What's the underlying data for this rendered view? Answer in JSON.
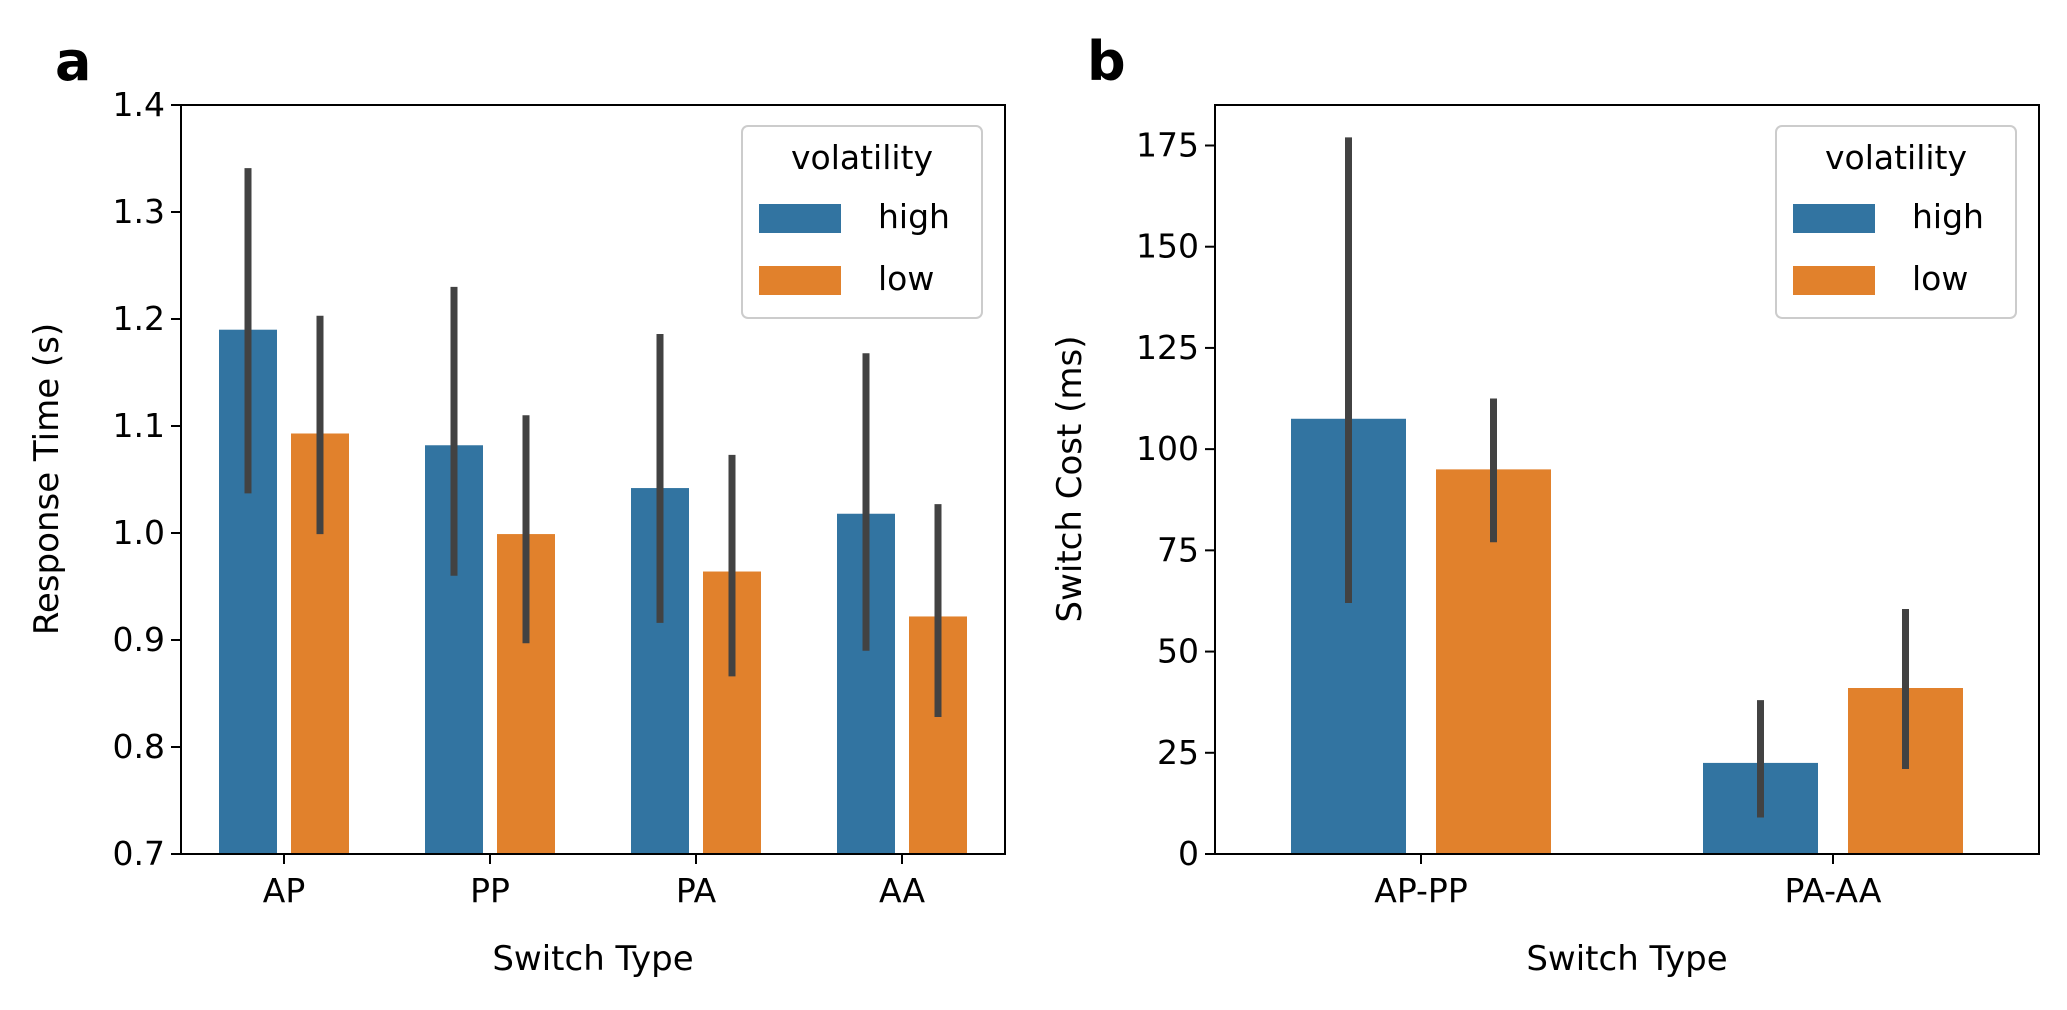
{
  "figure": {
    "panels": [
      "a",
      "b"
    ]
  },
  "colors": {
    "high": "#3274a1",
    "low": "#e1812c",
    "errorbar": "#424242",
    "axis": "#000000",
    "legend_border": "#cccccc"
  },
  "chart_data": [
    {
      "panel": "a",
      "type": "bar",
      "xlabel": "Switch Type",
      "ylabel": "Response Time (s)",
      "ylim": [
        0.7,
        1.4
      ],
      "yticks": [
        0.7,
        0.8,
        0.9,
        1.0,
        1.1,
        1.2,
        1.3,
        1.4
      ],
      "ytick_labels": [
        "0.7",
        "0.8",
        "0.9",
        "1.0",
        "1.1",
        "1.2",
        "1.3",
        "1.4"
      ],
      "categories": [
        "AP",
        "PP",
        "PA",
        "AA"
      ],
      "legend": {
        "title": "volatility",
        "placement": "top-right"
      },
      "series": [
        {
          "name": "high",
          "values": [
            1.19,
            1.082,
            1.042,
            1.018
          ],
          "ci_low": [
            1.037,
            0.96,
            0.916,
            0.89
          ],
          "ci_high": [
            1.341,
            1.23,
            1.186,
            1.168
          ]
        },
        {
          "name": "low",
          "values": [
            1.093,
            0.999,
            0.964,
            0.922
          ],
          "ci_low": [
            0.999,
            0.897,
            0.866,
            0.828
          ],
          "ci_high": [
            1.203,
            1.11,
            1.073,
            1.027
          ]
        }
      ]
    },
    {
      "panel": "b",
      "type": "bar",
      "xlabel": "Switch Type",
      "ylabel": "Switch Cost (ms)",
      "ylim": [
        0,
        185
      ],
      "yticks": [
        0,
        25,
        50,
        75,
        100,
        125,
        150,
        175
      ],
      "ytick_labels": [
        "0",
        "25",
        "50",
        "75",
        "100",
        "125",
        "150",
        "175"
      ],
      "categories": [
        "AP-PP",
        "PA-AA"
      ],
      "legend": {
        "title": "volatility",
        "placement": "top-right"
      },
      "series": [
        {
          "name": "high",
          "values": [
            107.5,
            22.5
          ],
          "ci_low": [
            62,
            9
          ],
          "ci_high": [
            177,
            38
          ]
        },
        {
          "name": "low",
          "values": [
            95,
            41
          ],
          "ci_low": [
            77,
            21
          ],
          "ci_high": [
            112.5,
            60.5
          ]
        }
      ]
    }
  ]
}
